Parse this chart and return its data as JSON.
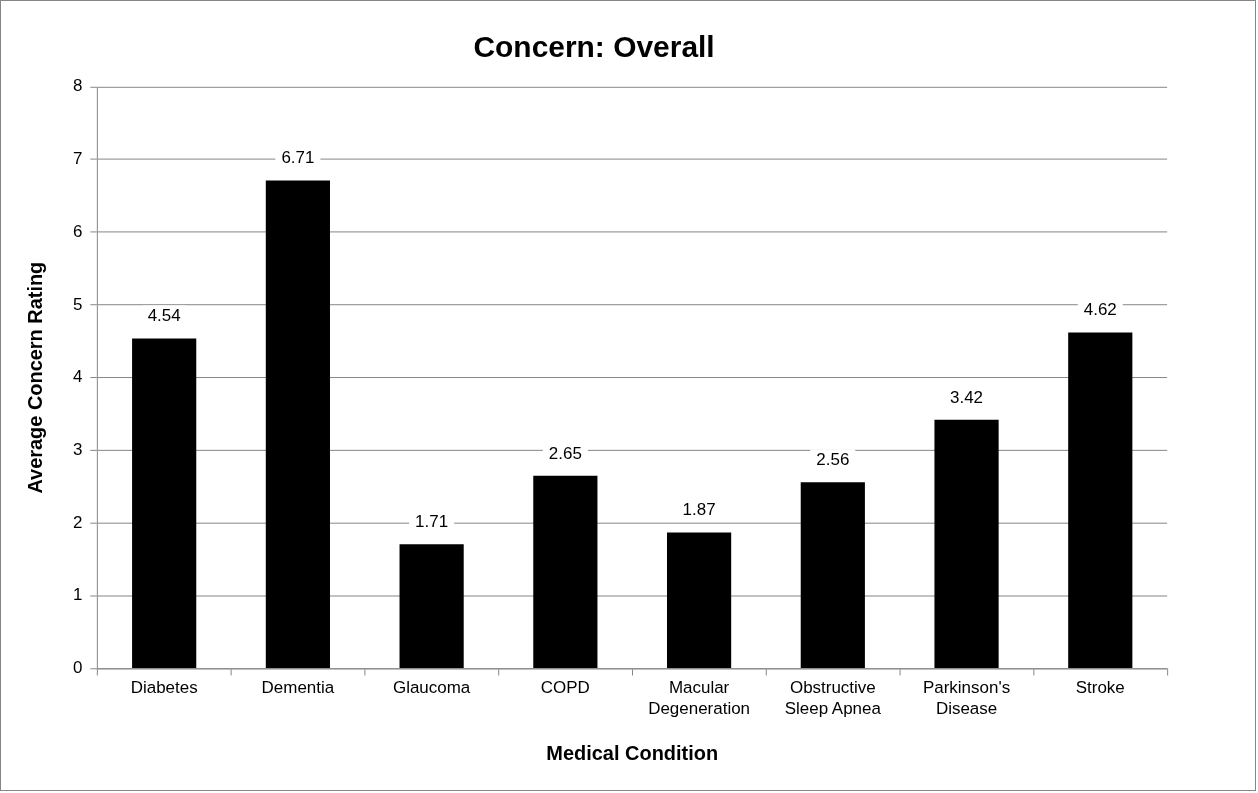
{
  "chart_data": {
    "type": "bar",
    "title": "Concern: Overall",
    "xlabel": "Medical Condition",
    "ylabel": "Average Concern Rating",
    "categories": [
      "Diabetes",
      "Dementia",
      "Glaucoma",
      "COPD",
      "Macular Degeneration",
      "Obstructive Sleep Apnea",
      "Parkinson's Disease",
      "Stroke"
    ],
    "values": [
      4.54,
      6.71,
      1.71,
      2.65,
      1.87,
      2.56,
      3.42,
      4.62
    ],
    "color": "#000000",
    "ylim": [
      0,
      8
    ],
    "yticks": [
      0,
      1,
      2,
      3,
      4,
      5,
      6,
      7,
      8
    ],
    "grid": "y",
    "data_labels": true,
    "legend": false
  }
}
